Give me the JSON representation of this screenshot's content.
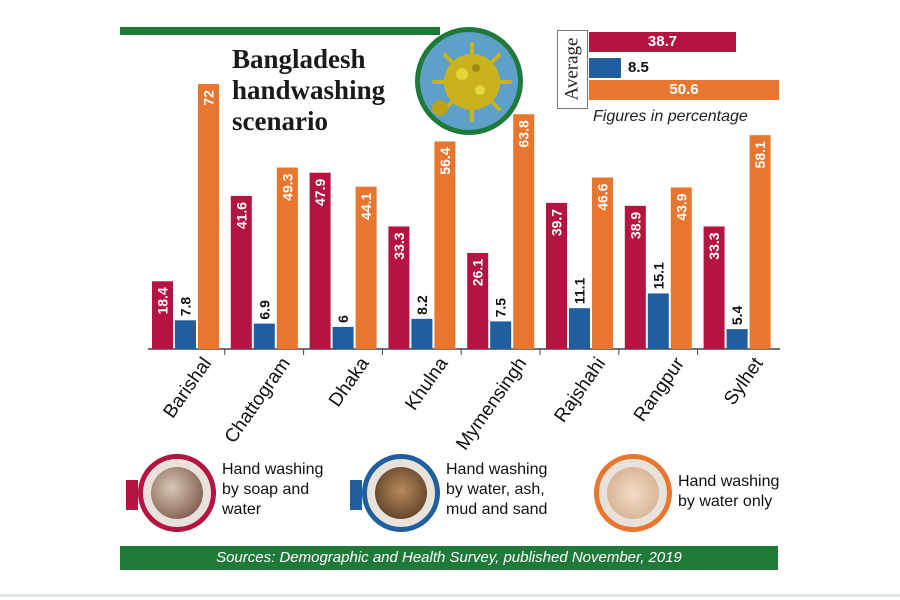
{
  "title_lines": [
    "Bangladesh",
    "handwashing",
    "scenario"
  ],
  "average": {
    "label": "Average",
    "soap": "38.7",
    "ash": "8.5",
    "water": "50.6",
    "note": "Figures in percentage"
  },
  "chart_data": {
    "type": "bar",
    "title": "Bangladesh handwashing scenario",
    "categories": [
      "Barishal",
      "Chattogram",
      "Dhaka",
      "Khulna",
      "Mymensingh",
      "Rajshahi",
      "Rangpur",
      "Sylhet"
    ],
    "series": [
      {
        "name": "Hand washing by soap and water",
        "color": "#b4143f",
        "values": [
          18.4,
          41.6,
          47.9,
          33.3,
          26.1,
          39.7,
          38.9,
          33.3
        ]
      },
      {
        "name": "Hand washing by water, ash, mud and sand",
        "color": "#1f5fa0",
        "values": [
          7.8,
          6.9,
          6,
          8.2,
          7.5,
          11.1,
          15.1,
          5.4
        ]
      },
      {
        "name": "Hand washing by water only",
        "color": "#e8762e",
        "values": [
          72,
          49.3,
          44.1,
          56.4,
          63.8,
          46.6,
          43.9,
          58.1
        ]
      }
    ],
    "value_labels": [
      [
        "18.4",
        "41.6",
        "47.9",
        "33.3",
        "26.1",
        "39.7",
        "38.9",
        "33.3"
      ],
      [
        "7.8",
        "6.9",
        "6",
        "8.2",
        "7.5",
        "11.1",
        "15.1",
        "5.4"
      ],
      [
        "72",
        "49.3",
        "44.1",
        "56.4",
        "63.8",
        "46.6",
        "43.9",
        "58.1"
      ]
    ],
    "ylim": [
      0,
      100
    ],
    "xlabel": "",
    "ylabel": ""
  },
  "legend": [
    {
      "text_lines": [
        "Hand washing",
        "by soap and",
        "water"
      ],
      "color": "#b4143f",
      "icon": "soap-handwash-photo"
    },
    {
      "text_lines": [
        "Hand washing",
        "by water, ash,",
        "mud and sand"
      ],
      "color": "#1f5fa0",
      "icon": "ash-handwash-photo"
    },
    {
      "text_lines": [
        "Hand washing",
        "by water only"
      ],
      "color": "#e8762e",
      "icon": "water-handwash-photo"
    }
  ],
  "source": "Sources: Demographic and Health Survey, published November, 2019"
}
